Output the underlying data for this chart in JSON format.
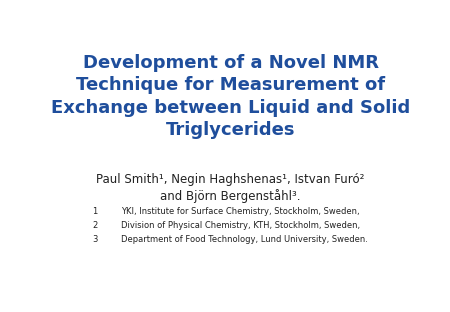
{
  "background_color": "#ffffff",
  "title_lines": [
    "Development of a Novel NMR",
    "Technique for Measurement of",
    "Exchange between Liquid and Solid",
    "Triglycerides"
  ],
  "title_color": "#1f4e9c",
  "title_fontsize": 13.0,
  "authors_line1": "Paul Smith¹, Negin Haghshenas¹, Istvan Furó²",
  "authors_line2": "and Björn Bergenståhl³.",
  "authors_color": "#222222",
  "authors_fontsize": 8.5,
  "affiliations": [
    [
      "1",
      "YKI, Institute for Surface Chemistry, Stockholm, Sweden,"
    ],
    [
      "2",
      "Division of Physical Chemistry, KTH, Stockholm, Sweden,"
    ],
    [
      "3",
      "Department of Food Technology, Lund University, Sweden."
    ]
  ],
  "affil_color": "#222222",
  "affil_fontsize": 6.0
}
